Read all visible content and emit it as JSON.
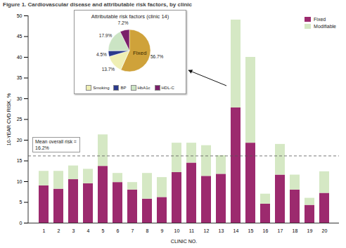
{
  "chart_data": [
    {
      "type": "bar",
      "title": "Figure 1. Cardiovascular disease and attributable risk factors, by clinic",
      "x_label": "CLINIC NO.",
      "y_label": "10-YEAR CVD RISK, %",
      "stacked": true,
      "categories": [
        "1",
        "2",
        "3",
        "4",
        "5",
        "6",
        "7",
        "8",
        "9",
        "10",
        "11",
        "12",
        "13",
        "14",
        "15",
        "16",
        "17",
        "18",
        "19",
        "20"
      ],
      "series": [
        {
          "name": "Fixed",
          "color": "#9c2a6e",
          "values": [
            9,
            8.2,
            10.5,
            9.5,
            13.7,
            9.8,
            8,
            5.8,
            6.2,
            12.2,
            14.5,
            11.3,
            11.8,
            27.8,
            19.3,
            4.6,
            11.6,
            8,
            4.3,
            7.2
          ]
        },
        {
          "name": "Modifiable",
          "color": "#d5e8c4",
          "values": [
            3.5,
            4.3,
            3.3,
            3.5,
            7.6,
            2.2,
            1.8,
            6.2,
            4.8,
            7.1,
            4.8,
            7.4,
            4.5,
            21.2,
            20.7,
            2.4,
            7.4,
            3.6,
            1.7,
            5.2
          ]
        }
      ],
      "ylim": [
        0,
        50
      ],
      "yticks": [
        0,
        5,
        10,
        15,
        20,
        25,
        30,
        35,
        40,
        45,
        50
      ],
      "grid": false,
      "legend": "top-right",
      "reference_line": {
        "value": 16.2,
        "label": "Mean overall risk = 16.2%"
      }
    },
    {
      "type": "pie",
      "title": "Attributable risk factors (clinic 14)",
      "categories": [
        "Fixed",
        "Smoking",
        "BP",
        "HbA1c",
        "HDL-C"
      ],
      "values": [
        56.7,
        13.7,
        4.5,
        17.9,
        7.2
      ],
      "colors": [
        "#cfa23a",
        "#efefb4",
        "#2b3a8c",
        "#cbe4c4",
        "#7a1f6a"
      ],
      "data_labels": true,
      "value_labels": [
        "56.7%",
        "13.7%",
        "4.5%",
        "17.9%",
        "7.2%"
      ]
    }
  ]
}
